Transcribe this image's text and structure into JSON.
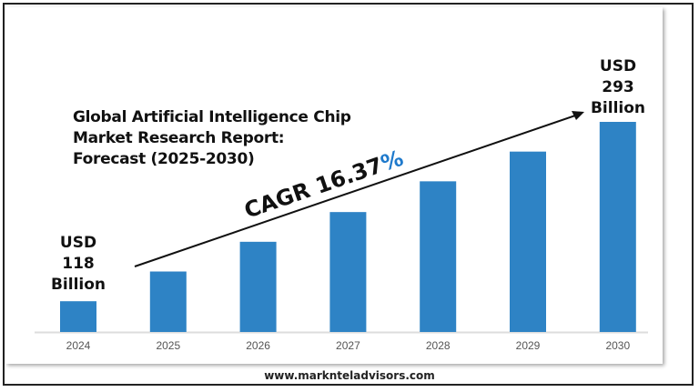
{
  "chart_data": {
    "type": "bar",
    "title": "Global Artificial Intelligence Chip Market Research Report: Forecast (2025-2030)",
    "title_lines": [
      "Global Artificial Intelligence Chip",
      "Market Research Report:",
      "Forecast (2025-2030)"
    ],
    "categories": [
      "2024",
      "2025",
      "2026",
      "2027",
      "2028",
      "2029",
      "2030"
    ],
    "values": [
      118,
      147,
      176,
      205,
      235,
      264,
      293
    ],
    "unit": "USD Billion",
    "ylim": [
      88,
      293
    ],
    "grid": false,
    "bar_color": "#2E83C5",
    "annotations": {
      "start": {
        "line1": "USD",
        "line2": "118",
        "line3": "Billion"
      },
      "end": {
        "line1": "USD",
        "line2": "293",
        "line3": "Billion"
      },
      "cagr_text": "CAGR 16.37",
      "cagr_percent": "%",
      "cagr_percent_color": "#1F7ACC"
    }
  },
  "footer": "www.marknteladvisors.com"
}
